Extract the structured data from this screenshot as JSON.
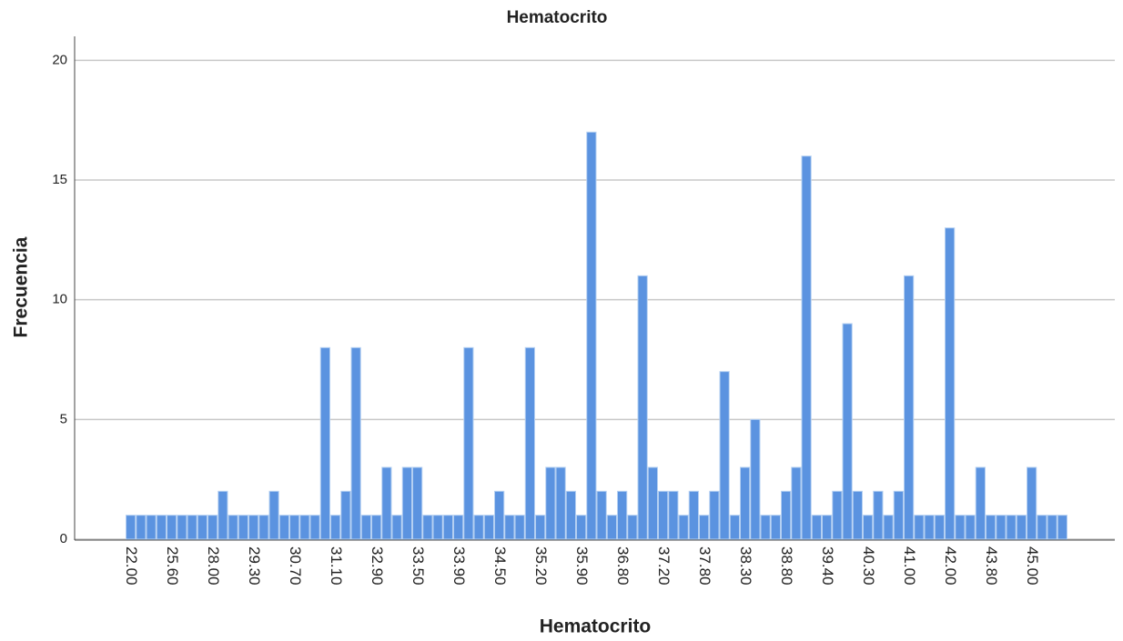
{
  "chart_data": {
    "type": "bar",
    "title": "Hematocrito",
    "x_label": "Hematocrito",
    "y_label": "Frecuencia",
    "categories": [
      "22.00",
      null,
      null,
      null,
      "25.60",
      null,
      null,
      null,
      "28.00",
      null,
      null,
      null,
      "29.30",
      null,
      null,
      null,
      "30.70",
      null,
      null,
      null,
      "31.10",
      null,
      null,
      null,
      "32.90",
      null,
      null,
      null,
      "33.50",
      null,
      null,
      null,
      "33.90",
      null,
      null,
      null,
      "34.50",
      null,
      null,
      null,
      "35.20",
      null,
      null,
      null,
      "35.90",
      null,
      null,
      null,
      "36.80",
      null,
      null,
      null,
      "37.20",
      null,
      null,
      null,
      "37.80",
      null,
      null,
      null,
      "38.30",
      null,
      null,
      null,
      "38.80",
      null,
      null,
      null,
      "39.40",
      null,
      null,
      null,
      "40.30",
      null,
      null,
      null,
      "41.00",
      null,
      null,
      null,
      "42.00",
      null,
      null,
      null,
      "43.80",
      null,
      null,
      null,
      "45.00",
      null,
      null,
      null
    ],
    "values": [
      1,
      1,
      1,
      1,
      1,
      1,
      1,
      1,
      1,
      2,
      1,
      1,
      1,
      1,
      2,
      1,
      1,
      1,
      1,
      8,
      1,
      2,
      8,
      1,
      1,
      3,
      1,
      3,
      3,
      1,
      1,
      1,
      1,
      8,
      1,
      1,
      2,
      1,
      1,
      8,
      1,
      3,
      3,
      2,
      1,
      17,
      2,
      1,
      2,
      1,
      11,
      3,
      2,
      2,
      1,
      2,
      1,
      2,
      7,
      1,
      3,
      5,
      1,
      1,
      2,
      3,
      16,
      1,
      1,
      2,
      9,
      2,
      1,
      2,
      1,
      2,
      11,
      1,
      1,
      1,
      13,
      1,
      1,
      3,
      1,
      1,
      1,
      1,
      3,
      1,
      1,
      1
    ],
    "color": "#5b93e0",
    "ylim": [
      0,
      21
    ],
    "yticks": [
      0,
      5,
      10,
      15,
      20
    ],
    "grid": true
  }
}
